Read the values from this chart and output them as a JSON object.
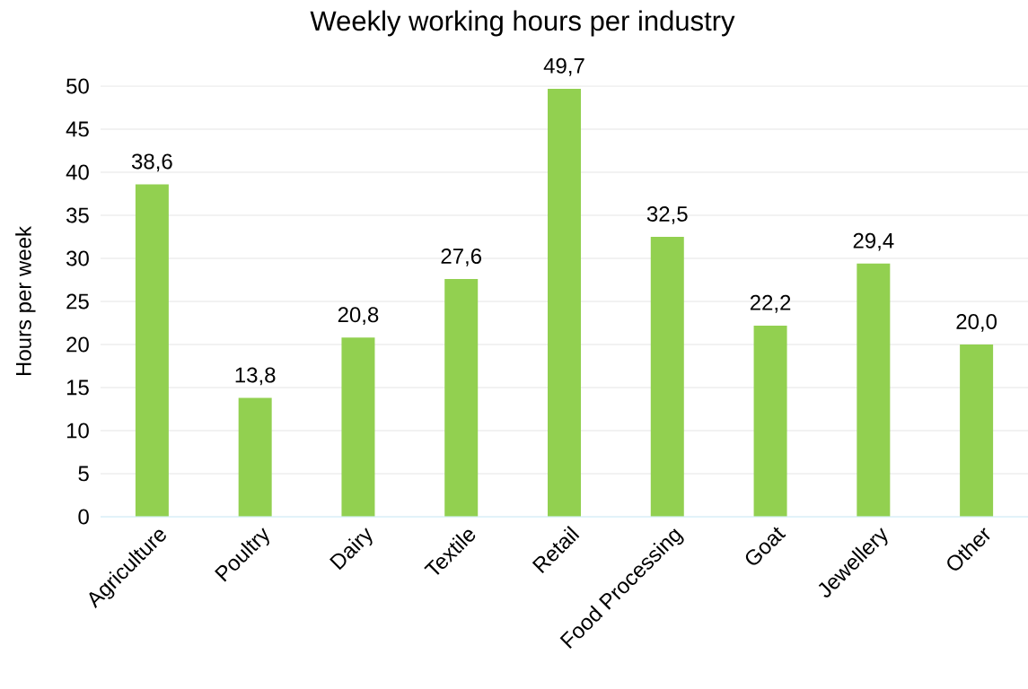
{
  "chart_data": {
    "type": "bar",
    "title": "Weekly working hours per industry",
    "ylabel": "Hours per week",
    "categories": [
      "Agriculture",
      "Poultry",
      "Dairy",
      "Textile",
      "Retail",
      "Food Processing",
      "Goat",
      "Jewellery",
      "Other"
    ],
    "values": [
      38.6,
      13.8,
      20.8,
      27.6,
      49.7,
      32.5,
      22.2,
      29.4,
      20.0
    ],
    "value_labels": [
      "38,6",
      "13,8",
      "20,8",
      "27,6",
      "49,7",
      "32,5",
      "22,2",
      "29,4",
      "20,0"
    ],
    "color": "#92d050",
    "ylim": [
      0,
      50
    ],
    "yticks": [
      0,
      5,
      10,
      15,
      20,
      25,
      30,
      35,
      40,
      45,
      50
    ],
    "grid": "y",
    "legend": false
  }
}
